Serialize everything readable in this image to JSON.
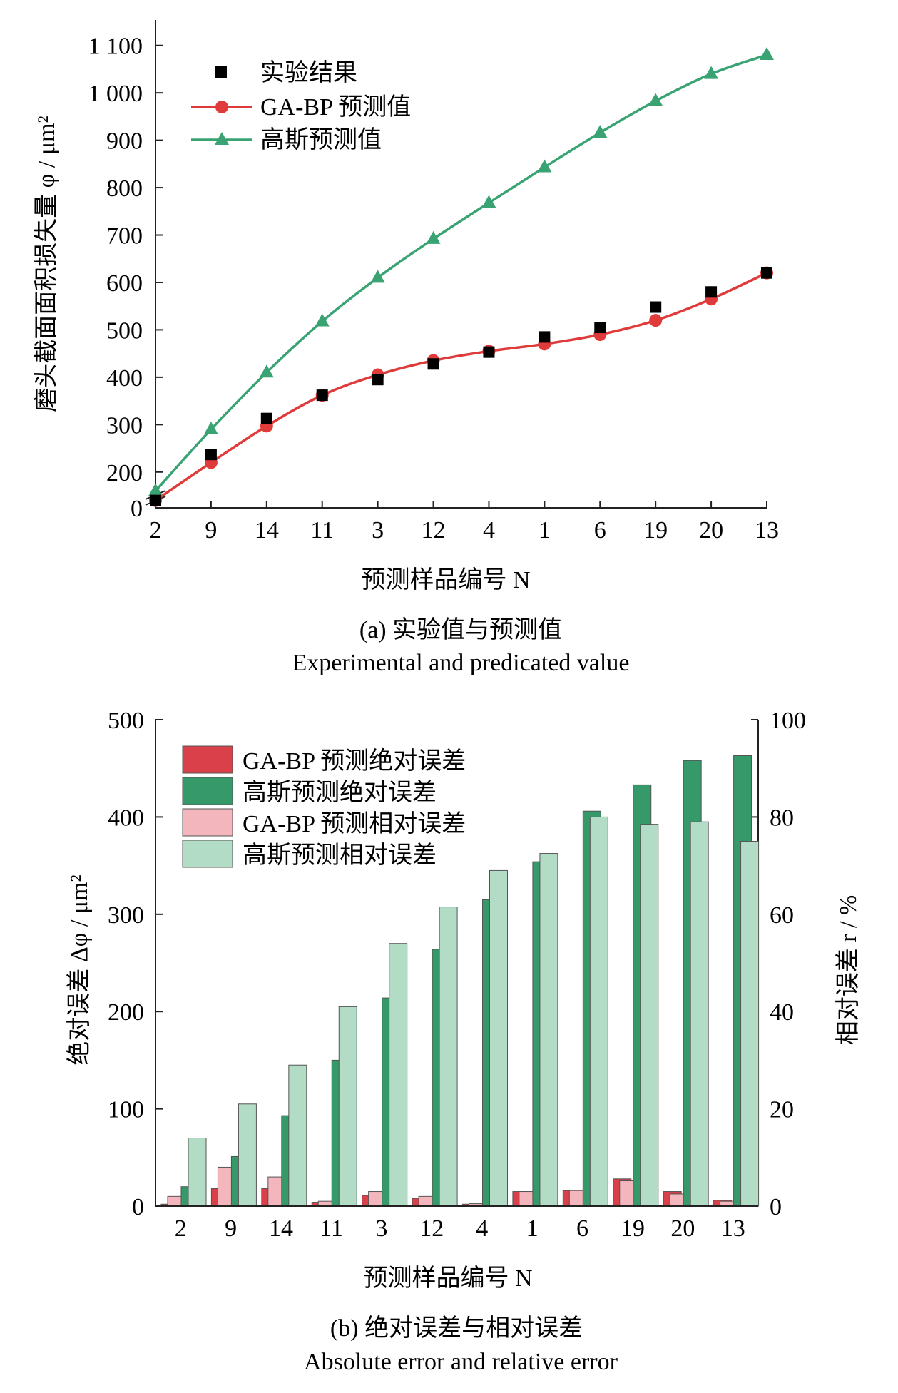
{
  "chart_data": [
    {
      "type": "line",
      "categories": [
        "2",
        "9",
        "14",
        "11",
        "3",
        "12",
        "4",
        "1",
        "6",
        "19",
        "20",
        "13"
      ],
      "ylabel": "磨头截面面积损失量 φ / μm²",
      "xlabel": "预测样品编号 N",
      "y_ticks": [
        "1 100",
        "1 000",
        "900",
        "800",
        "700",
        "600",
        "500",
        "400",
        "300",
        "200",
        "0"
      ],
      "ylim": [
        0,
        1100
      ],
      "axis_break": "between 0 and 200",
      "legend_position": "top-left",
      "series": [
        {
          "name": "实验结果",
          "style": "square-markers",
          "color": "#000000",
          "values": [
            140,
            237,
            313,
            362,
            395,
            428,
            453,
            485,
            505,
            548,
            580,
            620
          ]
        },
        {
          "name": "GA-BP 预测值",
          "style": "line-circle",
          "color": "#e03b3b",
          "values": [
            140,
            220,
            297,
            362,
            405,
            435,
            455,
            470,
            490,
            520,
            565,
            620
          ]
        },
        {
          "name": "高斯预测值",
          "style": "line-triangle",
          "color": "#3aa374",
          "values": [
            160,
            290,
            410,
            518,
            610,
            692,
            768,
            843,
            916,
            983,
            1040,
            1080
          ]
        }
      ],
      "caption": "(a) 实验值与预测值",
      "caption_en": "Experimental and predicated value"
    },
    {
      "type": "bar",
      "categories": [
        "2",
        "9",
        "14",
        "11",
        "3",
        "12",
        "4",
        "1",
        "6",
        "19",
        "20",
        "13"
      ],
      "ylabel": "绝对误差 Δφ / μm²",
      "ylabel_right": "相对误差 r / %",
      "xlabel": "预测样品编号 N",
      "y_ticks": [
        "500",
        "400",
        "300",
        "200",
        "100",
        "0"
      ],
      "y_ticks_right": [
        "100",
        "80",
        "60",
        "40",
        "20",
        "0"
      ],
      "ylim": [
        0,
        500
      ],
      "ylim_right": [
        0,
        100
      ],
      "legend_position": "top-left",
      "series": [
        {
          "name": "GA-BP 预测绝对误差",
          "axis": "left",
          "color": "#d9404a",
          "values": [
            2,
            18,
            18,
            4,
            11,
            8,
            2,
            15,
            16,
            28,
            15,
            6
          ]
        },
        {
          "name": "高斯预测绝对误差",
          "axis": "left",
          "color": "#35996a",
          "values": [
            20,
            51,
            93,
            150,
            214,
            264,
            315,
            354,
            406,
            433,
            458,
            463
          ]
        },
        {
          "name": "GA-BP 预测相对误差",
          "axis": "right",
          "color": "#f2b6bc",
          "values": [
            2,
            8,
            6,
            1,
            3,
            2,
            0.5,
            3,
            3.2,
            5.2,
            2.5,
            1
          ]
        },
        {
          "name": "高斯预测相对误差",
          "axis": "right",
          "color": "#b3dcc6",
          "values": [
            14,
            21,
            29,
            41,
            54,
            61.5,
            69,
            72.5,
            80,
            78.5,
            79,
            75
          ]
        }
      ],
      "caption": "(b) 绝对误差与相对误差",
      "caption_en": "Absolute error and relative error"
    }
  ]
}
